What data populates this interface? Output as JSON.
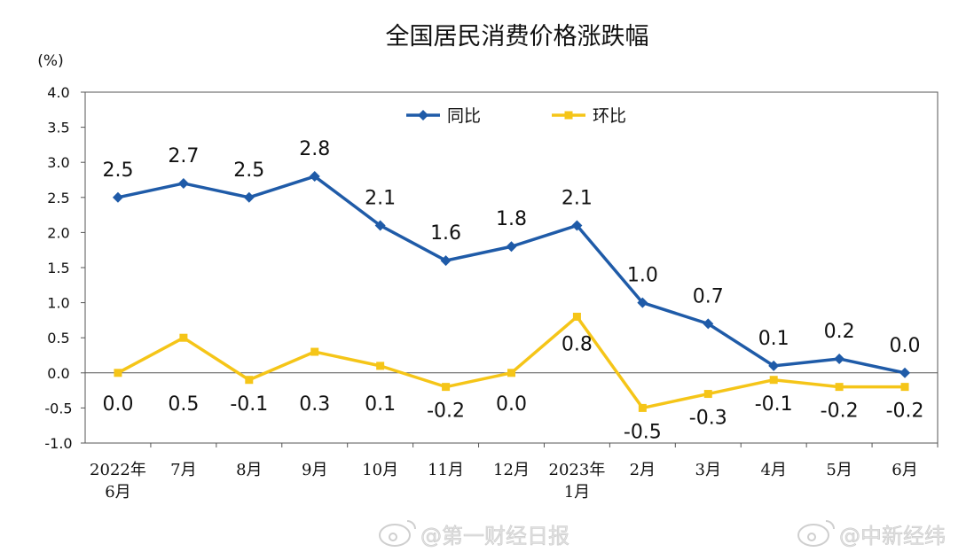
{
  "chart_data": {
    "type": "line",
    "title": "全国居民消费价格涨跌幅",
    "unit_label": "(%)",
    "categories": [
      [
        "2022年",
        "6月"
      ],
      [
        "7月"
      ],
      [
        "8月"
      ],
      [
        "9月"
      ],
      [
        "10月"
      ],
      [
        "11月"
      ],
      [
        "12月"
      ],
      [
        "2023年",
        "1月"
      ],
      [
        "2月"
      ],
      [
        "3月"
      ],
      [
        "4月"
      ],
      [
        "5月"
      ],
      [
        "6月"
      ]
    ],
    "ylim": [
      -1.0,
      4.0
    ],
    "yticks": [
      "4.0",
      "3.5",
      "3.0",
      "2.5",
      "2.0",
      "1.5",
      "1.0",
      "0.5",
      "0.0",
      "-0.5",
      "-1.0"
    ],
    "ytick_values": [
      4.0,
      3.5,
      3.0,
      2.5,
      2.0,
      1.5,
      1.0,
      0.5,
      0.0,
      -0.5,
      -1.0
    ],
    "grid": false,
    "legend_position": "top-center",
    "series": [
      {
        "name": "同比",
        "color": "#1f5ba8",
        "marker": "diamond",
        "values": [
          2.5,
          2.7,
          2.5,
          2.8,
          2.1,
          1.6,
          1.8,
          2.1,
          1.0,
          0.7,
          0.1,
          0.2,
          0.0
        ],
        "labels": [
          "2.5",
          "2.7",
          "2.5",
          "2.8",
          "2.1",
          "1.6",
          "1.8",
          "2.1",
          "1.0",
          "0.7",
          "0.1",
          "0.2",
          "0.0"
        ]
      },
      {
        "name": "环比",
        "color": "#f5c518",
        "marker": "square",
        "values": [
          0.0,
          0.5,
          -0.1,
          0.3,
          0.1,
          -0.2,
          0.0,
          0.8,
          -0.5,
          -0.3,
          -0.1,
          -0.2,
          -0.2
        ],
        "labels": [
          "0.0",
          "0.5",
          "-0.1",
          "0.3",
          "0.1",
          "-0.2",
          "0.0",
          "0.8",
          "-0.5",
          "-0.3",
          "-0.1",
          "-0.2",
          "-0.2"
        ]
      }
    ]
  },
  "watermarks": {
    "left_text": "@第一财经日报",
    "right_text": "@中新经纬",
    "icon": "weibo-logo-icon"
  }
}
